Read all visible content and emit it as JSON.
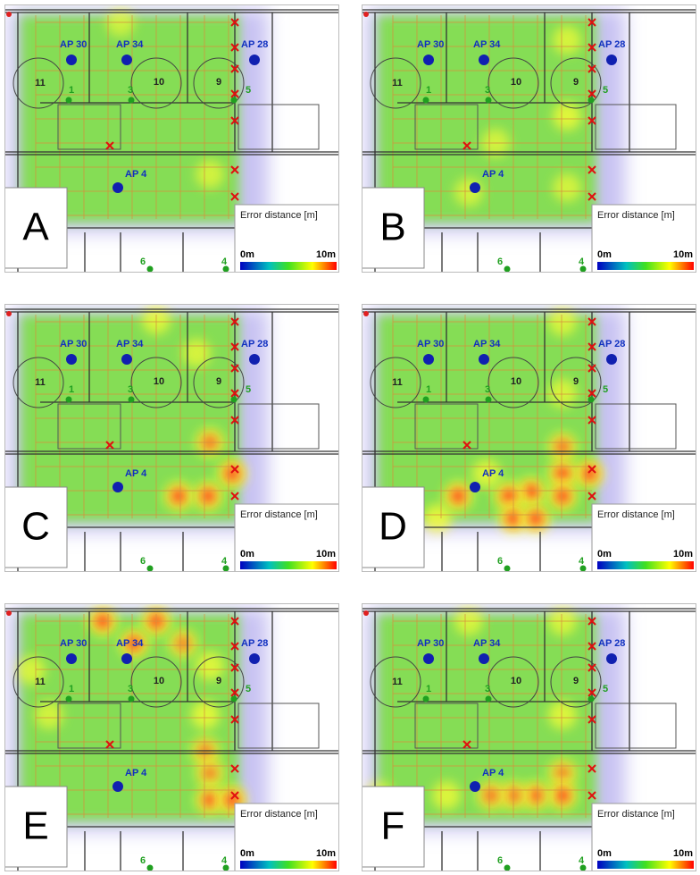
{
  "panels": [
    {
      "label": "A"
    },
    {
      "label": "B"
    },
    {
      "label": "C"
    },
    {
      "label": "D"
    },
    {
      "label": "E"
    },
    {
      "label": "F"
    }
  ],
  "plan": {
    "access_points": [
      "AP 30",
      "AP 34",
      "AP 28",
      "AP 4"
    ],
    "rooms": [
      "11",
      "10",
      "9"
    ],
    "points": [
      "1",
      "3",
      "5",
      "6",
      "4"
    ]
  },
  "legend": {
    "title": "Error distance [m]",
    "min": "0m",
    "max": "10m"
  }
}
